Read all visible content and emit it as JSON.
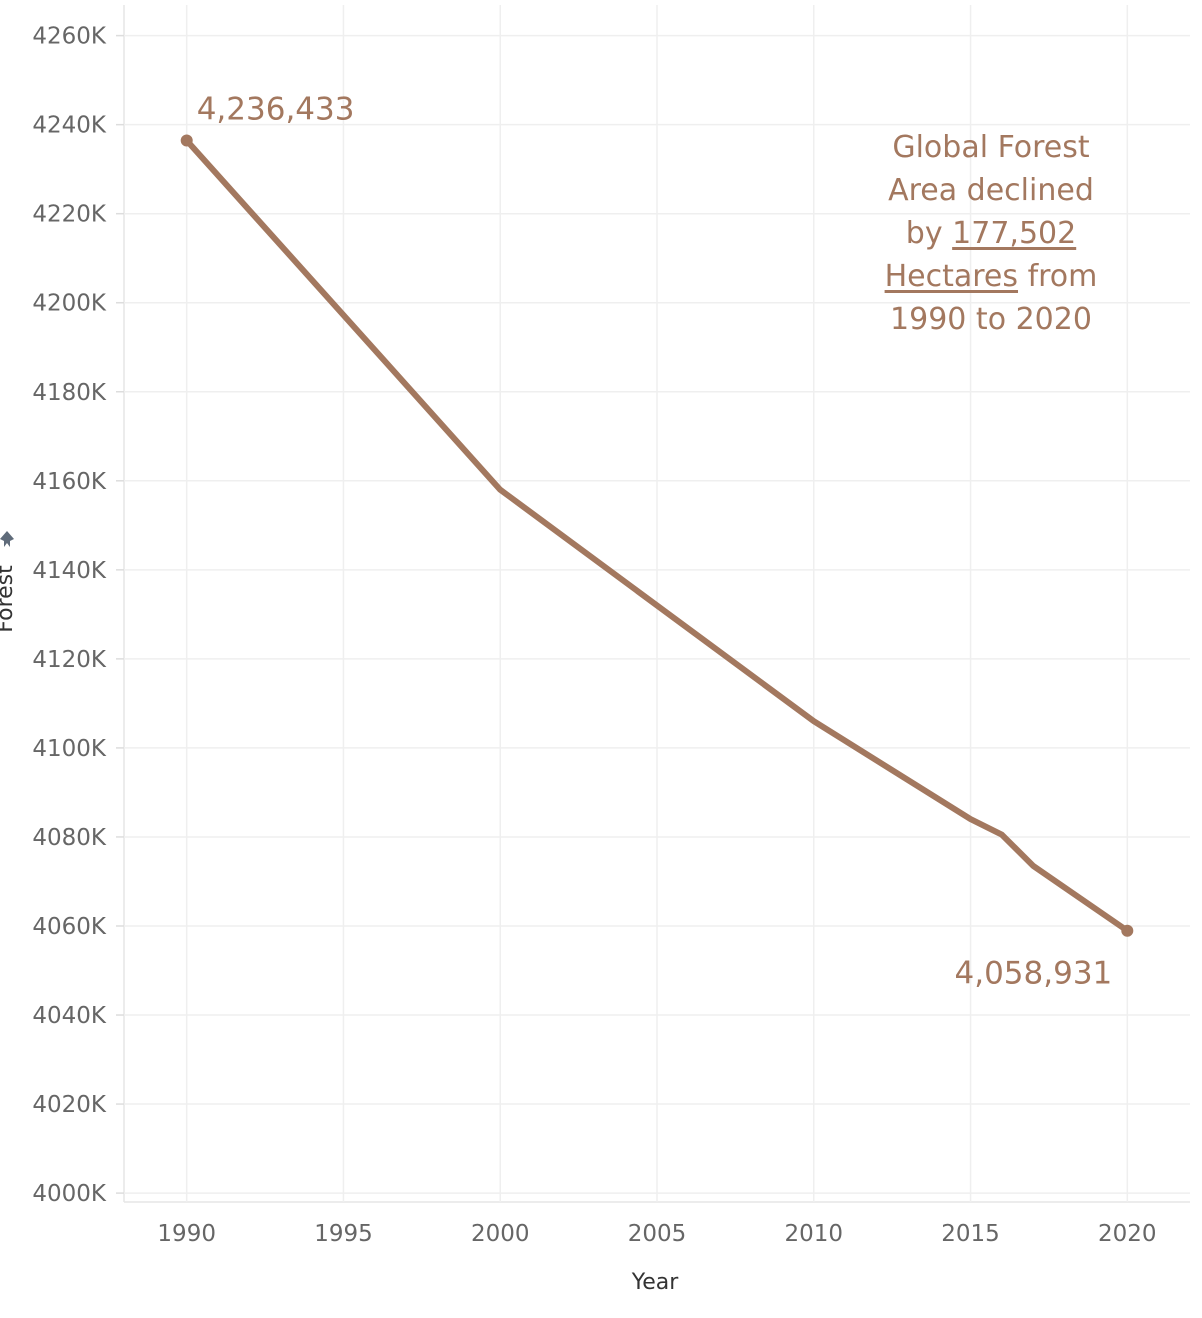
{
  "chart_data": {
    "type": "line",
    "xlabel": "Year",
    "ylabel": "Forest",
    "x_ticks": [
      "1990",
      "1995",
      "2000",
      "2005",
      "2010",
      "2015",
      "2020"
    ],
    "y_ticks": [
      "4000K",
      "4020K",
      "4040K",
      "4060K",
      "4080K",
      "4100K",
      "4120K",
      "4140K",
      "4160K",
      "4180K",
      "4200K",
      "4220K",
      "4240K",
      "4260K"
    ],
    "xlim": [
      1988,
      2022
    ],
    "ylim": [
      3998,
      4268
    ],
    "grid": true,
    "color": "#A3785F",
    "series": [
      {
        "x": [
          1990,
          2000,
          2010,
          2015,
          2016,
          2017,
          2020
        ],
        "y": [
          4236.433,
          4158.0,
          4106.0,
          4084.0,
          4080.5,
          4073.5,
          4058.931
        ]
      }
    ],
    "data_labels": [
      {
        "x": 1990,
        "y": 4236.433,
        "text": "4,236,433"
      },
      {
        "x": 2020,
        "y": 4058.931,
        "text": "4,058,931"
      }
    ],
    "annotation": {
      "line1": "Global Forest",
      "line2": "Area declined",
      "line3_prefix": "by",
      "amount": "177,502",
      "unit": "Hectares",
      "from_word": "from",
      "line5": "1990 to 2020"
    }
  },
  "icons": {
    "axis_filter": "pin-icon"
  }
}
